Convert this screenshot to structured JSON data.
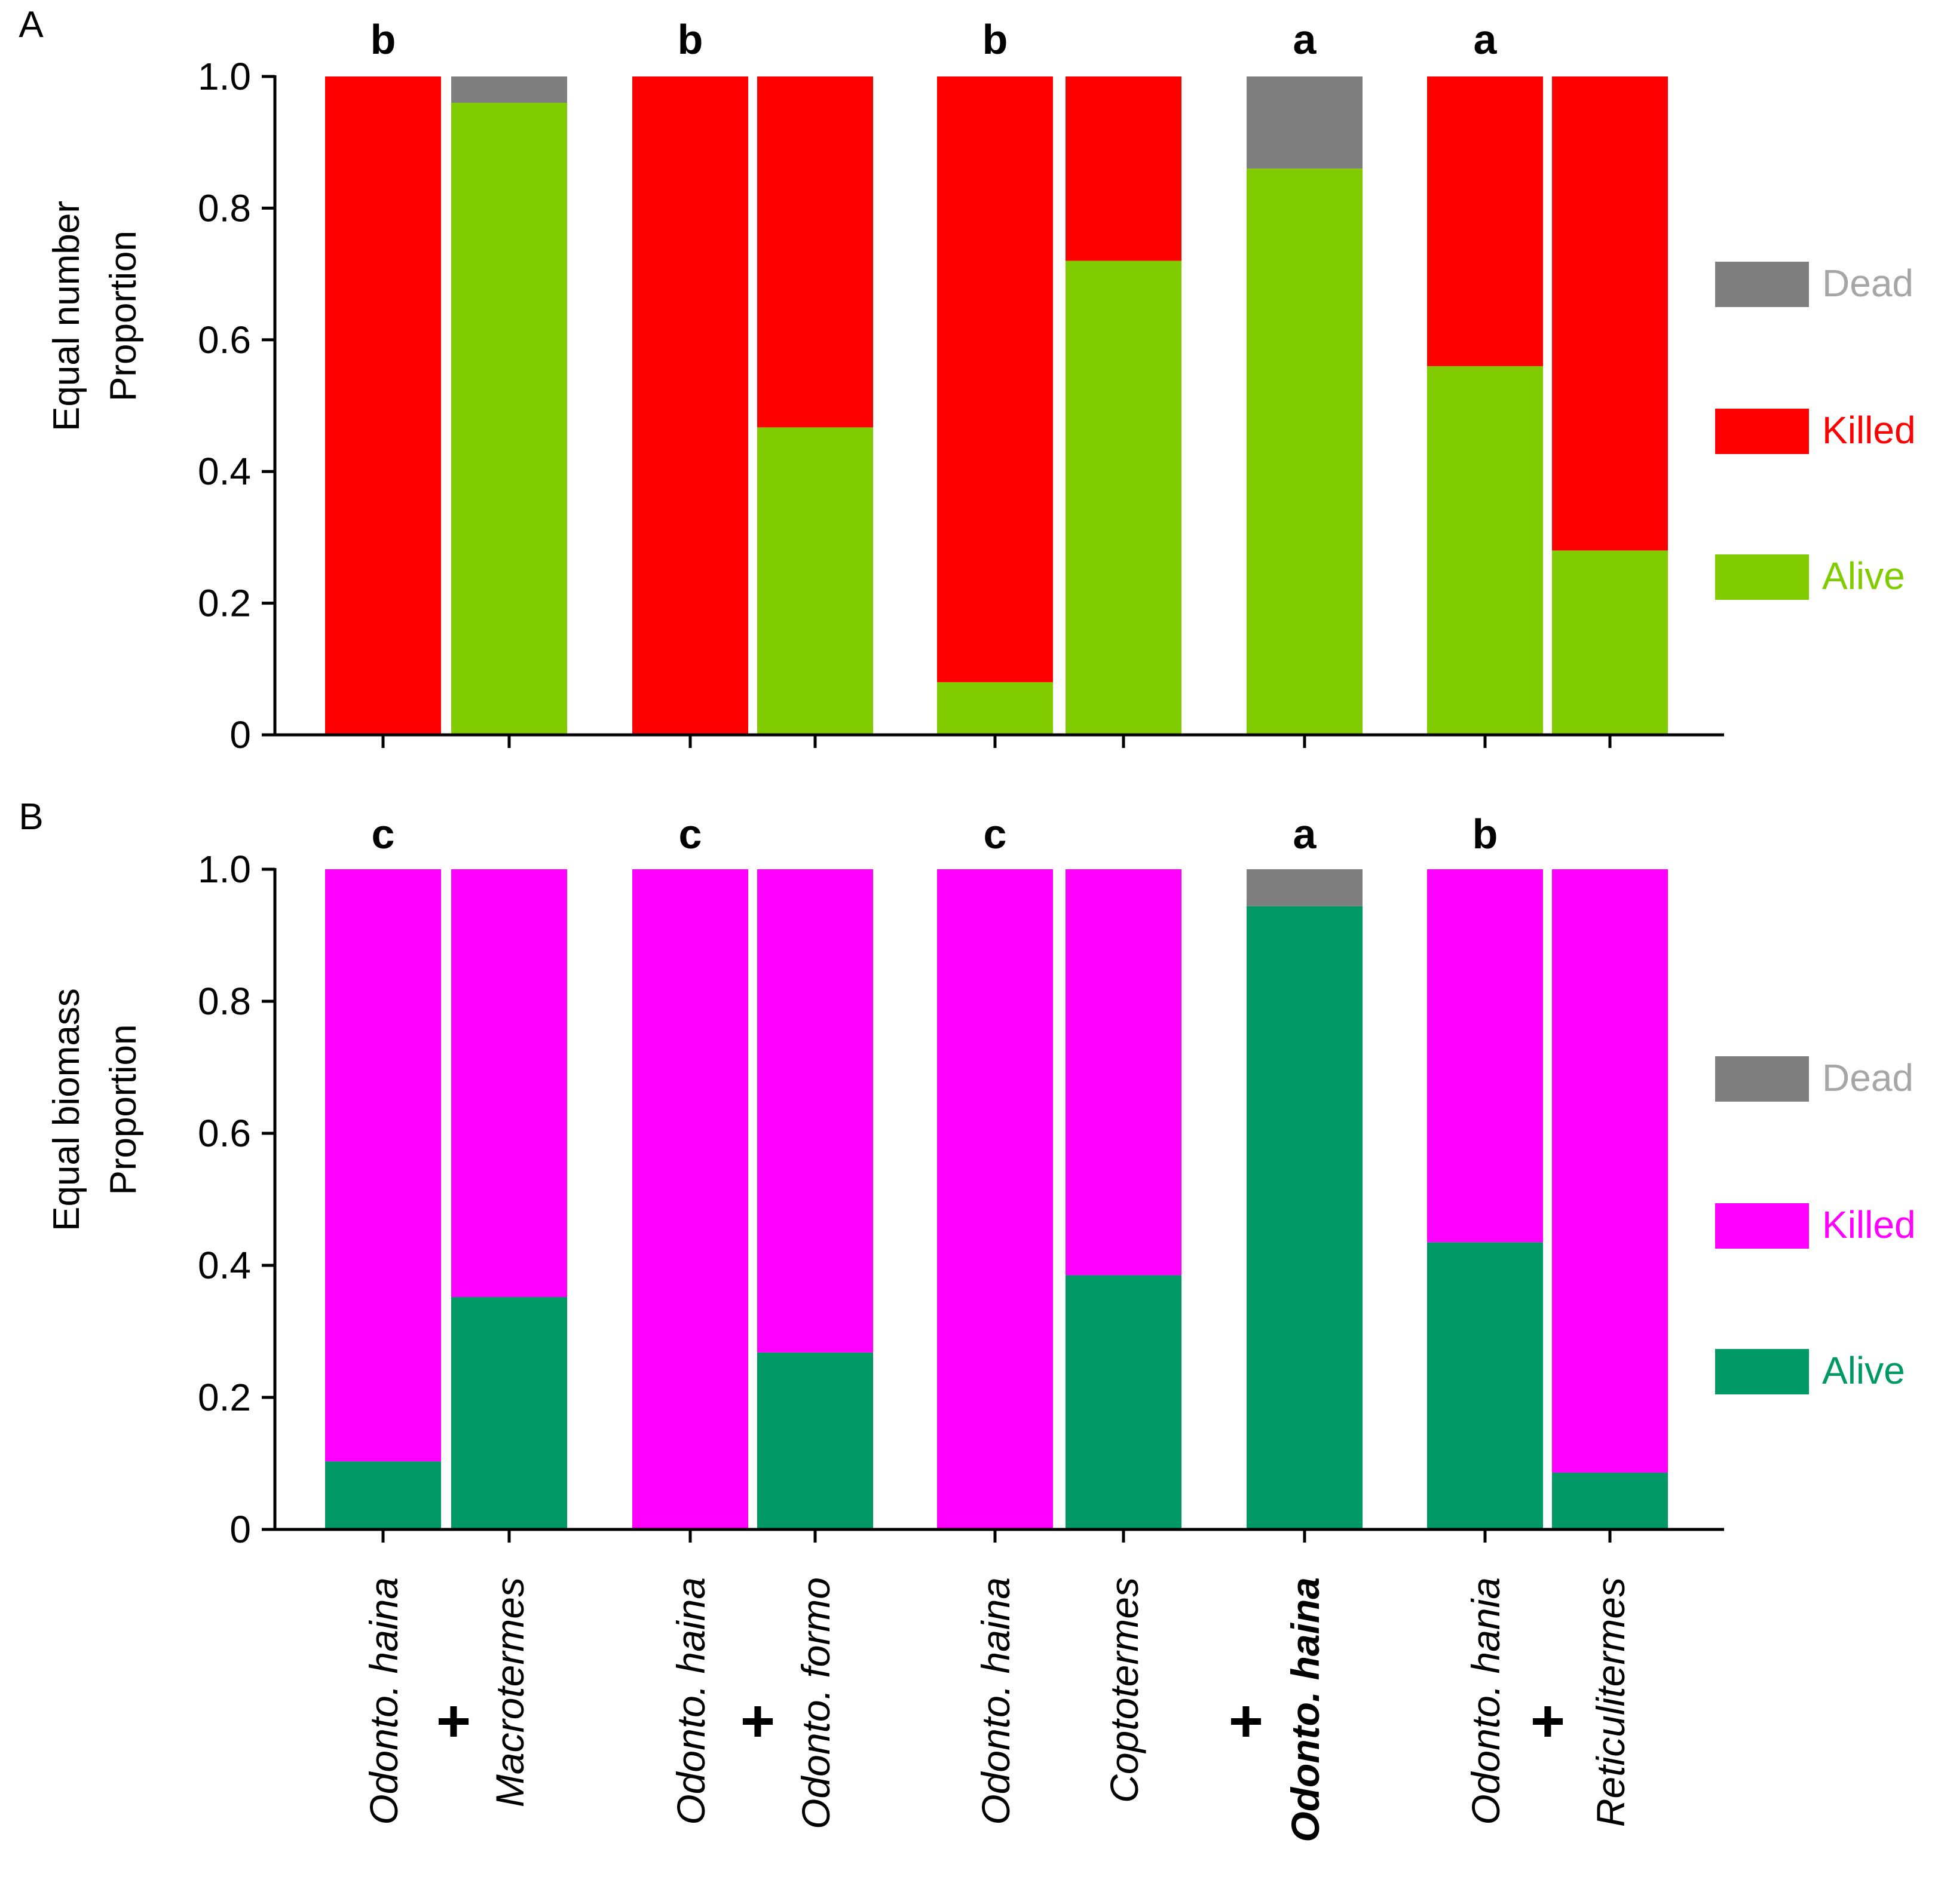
{
  "colors": {
    "axis": "#000000",
    "dead": "#7f7f7f",
    "dead_label": "#a6a6a6",
    "killed_A": "#ff0000",
    "alive_A": "#80cc00",
    "killed_B": "#ff00ff",
    "alive_B": "#009966"
  },
  "x_labels": [
    {
      "text": "Odonto. haina",
      "bold": false
    },
    {
      "text": "Macrotermes",
      "bold": false
    },
    {
      "text": "Odonto. haina",
      "bold": false
    },
    {
      "text": "Odonto. formo",
      "bold": false
    },
    {
      "text": "Odonto. haina",
      "bold": false
    },
    {
      "text": "Coptotermes",
      "bold": false
    },
    {
      "text": "Odonto. haina",
      "bold": true
    },
    {
      "text": "Odonto. hania",
      "bold": false
    },
    {
      "text": "Reticulitermes",
      "bold": false
    }
  ],
  "plus_sign": "+",
  "chart_data": [
    {
      "type": "bar",
      "stacked": true,
      "panel": "A",
      "ylabel_line1": "Equal number",
      "ylabel_line2": "Proportion",
      "ylim": [
        0,
        1.0
      ],
      "yticks": [
        "0",
        "0.2",
        "0.4",
        "0.6",
        "0.8",
        "1.0"
      ],
      "group_letters": [
        "b",
        "b",
        "b",
        "a",
        "a"
      ],
      "legend": [
        "Dead",
        "Killed",
        "Alive"
      ],
      "legend_position": "right",
      "series": [
        {
          "name": "Alive",
          "values": [
            0,
            0.96,
            0,
            0.467,
            0.08,
            0.72,
            0.86,
            0.56,
            0.28
          ]
        },
        {
          "name": "Killed",
          "values": [
            1.0,
            0,
            1.0,
            0.533,
            0.92,
            0.28,
            0,
            0.44,
            0.72
          ]
        },
        {
          "name": "Dead",
          "values": [
            0,
            0.04,
            0,
            0,
            0,
            0,
            0.14,
            0,
            0
          ]
        }
      ]
    },
    {
      "type": "bar",
      "stacked": true,
      "panel": "B",
      "ylabel_line1": "Equal biomass",
      "ylabel_line2": "Proportion",
      "ylim": [
        0,
        1.0
      ],
      "yticks": [
        "0",
        "0.2",
        "0.4",
        "0.6",
        "0.8",
        "1.0"
      ],
      "group_letters": [
        "c",
        "c",
        "c",
        "a",
        "b"
      ],
      "legend": [
        "Dead",
        "Killed",
        "Alive"
      ],
      "legend_position": "right",
      "series": [
        {
          "name": "Alive",
          "values": [
            0.103,
            0.352,
            0,
            0.268,
            0,
            0.385,
            0.944,
            0.435,
            0.086
          ]
        },
        {
          "name": "Killed",
          "values": [
            0.897,
            0.648,
            1.0,
            0.732,
            1.0,
            0.615,
            0,
            0.565,
            0.914
          ]
        },
        {
          "name": "Dead",
          "values": [
            0,
            0,
            0,
            0,
            0,
            0,
            0.056,
            0,
            0
          ]
        }
      ]
    }
  ]
}
